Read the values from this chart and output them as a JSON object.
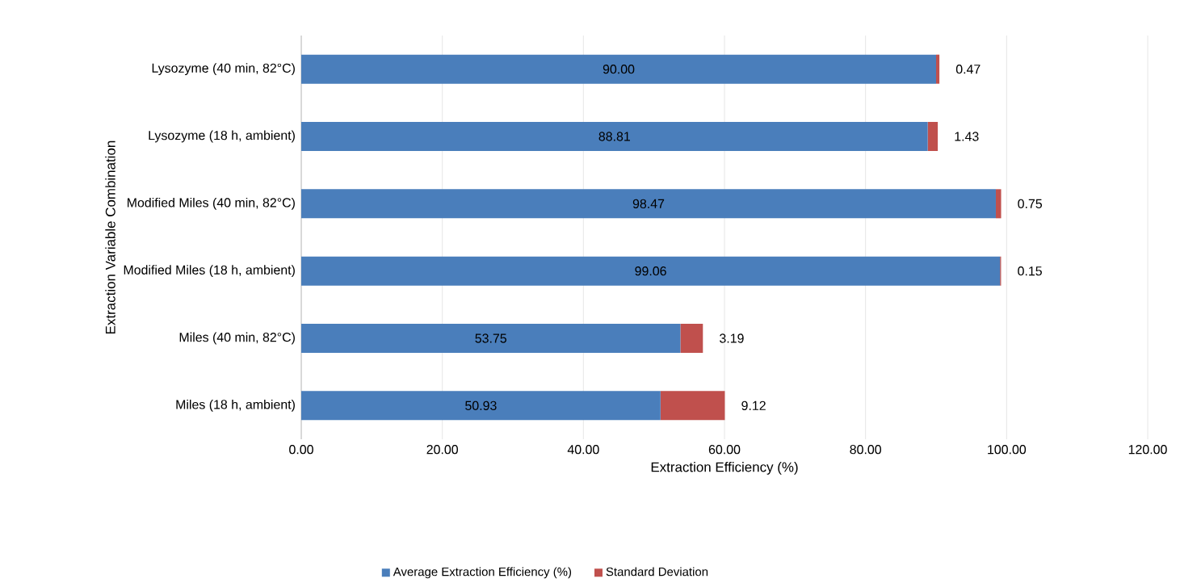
{
  "chart_data": {
    "type": "bar",
    "orientation": "horizontal",
    "stacked": true,
    "xlabel": "Extraction Efficiency (%)",
    "ylabel": "Extraction Variable Combination",
    "categories": [
      "Lysozyme (40 min, 82°C)",
      "Lysozyme (18 h, ambient)",
      "Modified Miles (40 min, 82°C)",
      "Modified Miles (18 h, ambient)",
      "Miles (40 min, 82°C)",
      "Miles (18 h, ambient)"
    ],
    "series": [
      {
        "name": "Average Extraction Efficiency (%)",
        "color": "#4a7ebb",
        "values": [
          90.0,
          88.81,
          98.47,
          99.06,
          53.75,
          50.93
        ],
        "value_labels": [
          "90.00",
          "88.81",
          "98.47",
          "99.06",
          "53.75",
          "50.93"
        ]
      },
      {
        "name": "Standard Deviation",
        "color": "#c0504d",
        "values": [
          0.47,
          1.43,
          0.75,
          0.15,
          3.19,
          9.12
        ],
        "value_labels": [
          "0.47",
          "1.43",
          "0.75",
          "0.15",
          "3.19",
          "9.12"
        ]
      }
    ],
    "xlim": [
      0,
      120
    ],
    "xticks": [
      {
        "value": 0,
        "label": "0.00"
      },
      {
        "value": 20,
        "label": "20.00"
      },
      {
        "value": 40,
        "label": "40.00"
      },
      {
        "value": 60,
        "label": "60.00"
      },
      {
        "value": 80,
        "label": "80.00"
      },
      {
        "value": 100,
        "label": "100.00"
      },
      {
        "value": 120,
        "label": "120.00"
      }
    ],
    "grid": "x",
    "legend": "bottom"
  }
}
